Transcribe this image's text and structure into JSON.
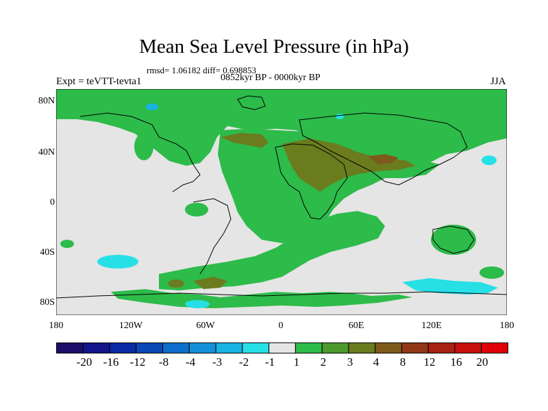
{
  "title": "Mean Sea Level Pressure (in hPa)",
  "stats": "rmsd= 1.06182 diff= 0.698853",
  "period": "0852kyr BP - 0000kyr BP",
  "experiment": "Expt = teVTT-tevta1",
  "season": "JJA",
  "map": {
    "lat_labels": [
      "80N",
      "40N",
      "0",
      "40S",
      "80S"
    ],
    "lon_labels": [
      "180",
      "120W",
      "60W",
      "0",
      "60E",
      "120E",
      "180"
    ],
    "regions": [
      {
        "name": "arctic-positive-band",
        "level": "1 to 2"
      },
      {
        "name": "north-africa-eurasia-positive",
        "level": "3 to 4"
      },
      {
        "name": "southern-ocean-positive",
        "level": "1 to 2"
      },
      {
        "name": "pacific-negative-anomaly",
        "level": "-2 to -1"
      }
    ]
  },
  "colorbar": {
    "labels": [
      "-20",
      "-16",
      "-12",
      "-8",
      "-4",
      "-3",
      "-2",
      "-1",
      "1",
      "2",
      "3",
      "4",
      "8",
      "12",
      "16",
      "20"
    ],
    "colors": [
      "#1c0d6b",
      "#14148a",
      "#0a2aa3",
      "#0a48b5",
      "#0e6ecb",
      "#128fd6",
      "#18b2e3",
      "#26e0e6",
      "#e5e5e5",
      "#2dbb4a",
      "#4c9a2e",
      "#6b7c1e",
      "#7e5a1a",
      "#913716",
      "#a72212",
      "#c7110e",
      "#e0000a"
    ]
  },
  "colors": {
    "neutral": "#e5e5e5",
    "positive_1": "#2dbb4a",
    "positive_3": "#6b7c1e",
    "negative_1": "#26e0e6",
    "negative_3": "#18b2e3"
  }
}
